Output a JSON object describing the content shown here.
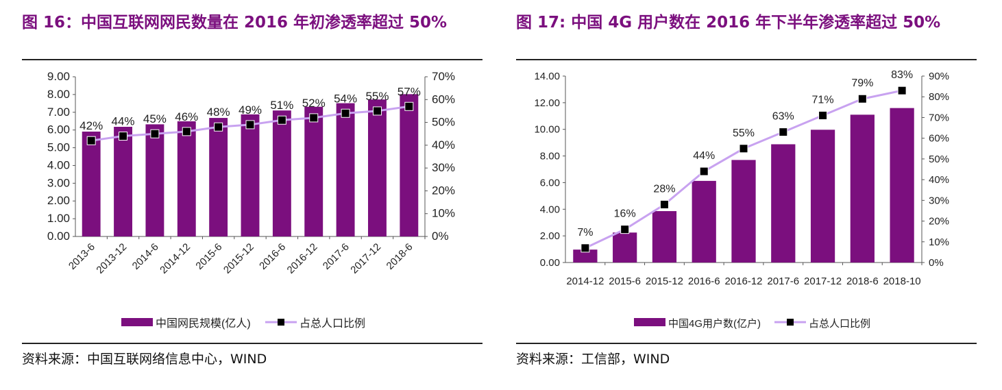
{
  "colors": {
    "bar": "#7B0F7E",
    "line": "#C8A2F0",
    "marker": "#000000",
    "title": "#7B0F7E"
  },
  "left_panel": {
    "title": "图 16：中国互联网网民数量在 2016 年初渗透率超过 50%",
    "source": "资料来源：中国互联网络信息中心，WIND"
  },
  "right_panel": {
    "title": "图 17: 中国 4G 用户数在 2016 年下半年渗透率超过 50%",
    "source": "资料来源：工信部，WIND"
  },
  "chart_data": [
    {
      "type": "bar",
      "categories": [
        "2013-6",
        "2013-12",
        "2014-6",
        "2014-12",
        "2015-6",
        "2015-12",
        "2016-6",
        "2016-12",
        "2017-6",
        "2017-12",
        "2018-6"
      ],
      "series": [
        {
          "name": "中国网民规模(亿人)",
          "type": "bar",
          "axis": "left",
          "values": [
            5.91,
            6.18,
            6.32,
            6.49,
            6.68,
            6.88,
            7.1,
            7.31,
            7.51,
            7.72,
            8.02
          ]
        },
        {
          "name": "占总人口比例",
          "type": "line",
          "axis": "right",
          "values": [
            42,
            44,
            45,
            46,
            48,
            49,
            51,
            52,
            54,
            55,
            57
          ],
          "labels": [
            "42%",
            "44%",
            "45%",
            "46%",
            "48%",
            "49%",
            "51%",
            "52%",
            "54%",
            "55%",
            "57%"
          ]
        }
      ],
      "ylim_left": [
        0,
        9
      ],
      "ylim_right": [
        0,
        70
      ],
      "yticks_left": [
        "0.00",
        "1.00",
        "2.00",
        "3.00",
        "4.00",
        "5.00",
        "6.00",
        "7.00",
        "8.00",
        "9.00"
      ],
      "yticks_right": [
        "0%",
        "10%",
        "20%",
        "30%",
        "40%",
        "50%",
        "60%",
        "70%"
      ],
      "legend_position": "bottom",
      "grid": false
    },
    {
      "type": "bar",
      "categories": [
        "2014-12",
        "2015-6",
        "2015-12",
        "2016-6",
        "2016-12",
        "2017-6",
        "2017-12",
        "2018-6",
        "2018-10"
      ],
      "series": [
        {
          "name": "中国4G用户数(亿户)",
          "type": "bar",
          "axis": "left",
          "values": [
            0.97,
            2.25,
            3.86,
            6.13,
            7.7,
            8.88,
            9.97,
            11.1,
            11.6
          ]
        },
        {
          "name": "占总人口比例",
          "type": "line",
          "axis": "right",
          "values": [
            7,
            16,
            28,
            44,
            55,
            63,
            71,
            79,
            83
          ],
          "labels": [
            "7%",
            "16%",
            "28%",
            "44%",
            "55%",
            "63%",
            "71%",
            "79%",
            "83%"
          ]
        }
      ],
      "ylim_left": [
        0,
        14
      ],
      "ylim_right": [
        0,
        90
      ],
      "yticks_left": [
        "0.00",
        "2.00",
        "4.00",
        "6.00",
        "8.00",
        "10.00",
        "12.00",
        "14.00"
      ],
      "yticks_right": [
        "0%",
        "10%",
        "20%",
        "30%",
        "40%",
        "50%",
        "60%",
        "70%",
        "80%",
        "90%"
      ],
      "legend_position": "bottom",
      "grid": false
    }
  ]
}
